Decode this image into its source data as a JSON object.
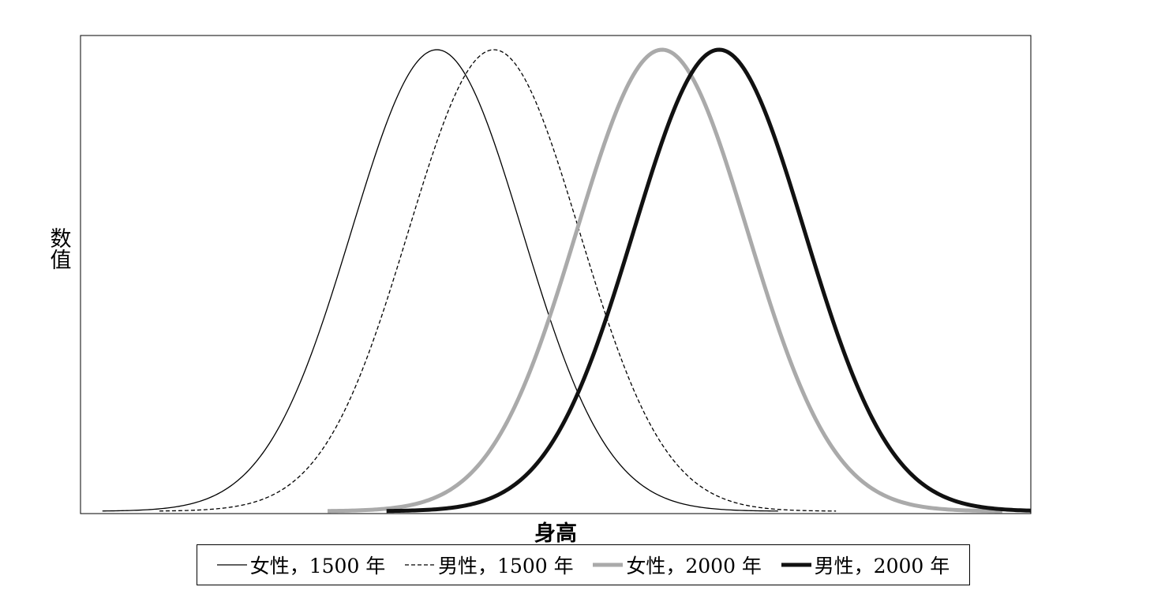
{
  "chart_data": {
    "type": "line",
    "title": "",
    "xlabel": "身高",
    "ylabel": "数值",
    "xlim": [
      0,
      100
    ],
    "ylim": [
      0,
      1
    ],
    "grid": false,
    "legend_position": "bottom",
    "show_ticks": false,
    "series": [
      {
        "name": "女性，1500 年",
        "color": "#000000",
        "style": "solid",
        "mean": 37.5,
        "sd": 9.0,
        "xmin": 2.3,
        "xmax": 73.4
      },
      {
        "name": "男性，1500 年",
        "color": "#000000",
        "style": "dashed",
        "mean": 43.5,
        "sd": 9.0,
        "xmin": 8.3,
        "xmax": 79.5
      },
      {
        "name": "女性，2000 年",
        "color": "#aaaaaa",
        "style": "solid-thick",
        "mean": 61.2,
        "sd": 9.0,
        "xmin": 26.0,
        "xmax": 97.0
      },
      {
        "name": "男性，2000 年",
        "color": "#111111",
        "style": "solid-bold",
        "mean": 67.2,
        "sd": 9.0,
        "xmin": 32.2,
        "xmax": 100
      }
    ]
  }
}
